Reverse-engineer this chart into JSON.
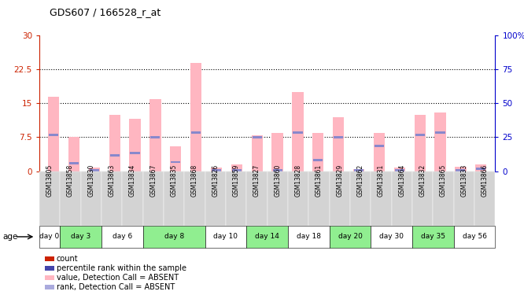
{
  "title": "GDS607 / 166528_r_at",
  "samples": [
    "GSM13805",
    "GSM13858",
    "GSM13830",
    "GSM13863",
    "GSM13834",
    "GSM13867",
    "GSM13835",
    "GSM13868",
    "GSM13826",
    "GSM13859",
    "GSM13827",
    "GSM13860",
    "GSM13828",
    "GSM13861",
    "GSM13829",
    "GSM13862",
    "GSM13831",
    "GSM13864",
    "GSM13832",
    "GSM13865",
    "GSM13833",
    "GSM13866"
  ],
  "pink_values": [
    16.5,
    7.5,
    0.8,
    12.5,
    11.5,
    16.0,
    5.5,
    24.0,
    0.8,
    1.5,
    8.0,
    8.5,
    17.5,
    8.5,
    12.0,
    0.5,
    8.5,
    0.8,
    12.5,
    13.0,
    1.0,
    1.5
  ],
  "blue_ranks": [
    8.0,
    1.8,
    0.2,
    3.5,
    4.0,
    7.5,
    2.0,
    8.5,
    0.1,
    0.2,
    7.5,
    0.1,
    8.5,
    2.5,
    7.5,
    0.1,
    5.5,
    0.1,
    8.0,
    8.5,
    0.2,
    0.5
  ],
  "age_groups": [
    {
      "label": "day 0",
      "samples": [
        "GSM13805"
      ],
      "color": "#ffffff"
    },
    {
      "label": "day 3",
      "samples": [
        "GSM13858",
        "GSM13830"
      ],
      "color": "#90ee90"
    },
    {
      "label": "day 6",
      "samples": [
        "GSM13863",
        "GSM13834"
      ],
      "color": "#ffffff"
    },
    {
      "label": "day 8",
      "samples": [
        "GSM13867",
        "GSM13835",
        "GSM13868"
      ],
      "color": "#90ee90"
    },
    {
      "label": "day 10",
      "samples": [
        "GSM13826",
        "GSM13859"
      ],
      "color": "#ffffff"
    },
    {
      "label": "day 14",
      "samples": [
        "GSM13827",
        "GSM13860"
      ],
      "color": "#90ee90"
    },
    {
      "label": "day 18",
      "samples": [
        "GSM13828",
        "GSM13861"
      ],
      "color": "#ffffff"
    },
    {
      "label": "day 20",
      "samples": [
        "GSM13829",
        "GSM13862"
      ],
      "color": "#90ee90"
    },
    {
      "label": "day 30",
      "samples": [
        "GSM13831",
        "GSM13864"
      ],
      "color": "#ffffff"
    },
    {
      "label": "day 35",
      "samples": [
        "GSM13832",
        "GSM13865"
      ],
      "color": "#90ee90"
    },
    {
      "label": "day 56",
      "samples": [
        "GSM13833",
        "GSM13866"
      ],
      "color": "#ffffff"
    }
  ],
  "ylim_left": [
    0,
    30
  ],
  "ylim_right": [
    0,
    100
  ],
  "yticks_left": [
    0,
    7.5,
    15,
    22.5,
    30
  ],
  "yticks_right": [
    0,
    25,
    50,
    75,
    100
  ],
  "bar_width": 0.55,
  "pink_color": "#ffb6c1",
  "blue_color": "#8888cc",
  "background_color": "#ffffff",
  "sample_bg": "#d3d3d3",
  "red_color": "#cc2200",
  "blue_axis_color": "#0000cc",
  "legend_data": [
    {
      "color": "#cc2200",
      "label": "count"
    },
    {
      "color": "#4444aa",
      "label": "percentile rank within the sample"
    },
    {
      "color": "#ffb6c1",
      "label": "value, Detection Call = ABSENT"
    },
    {
      "color": "#aaaadd",
      "label": "rank, Detection Call = ABSENT"
    }
  ]
}
